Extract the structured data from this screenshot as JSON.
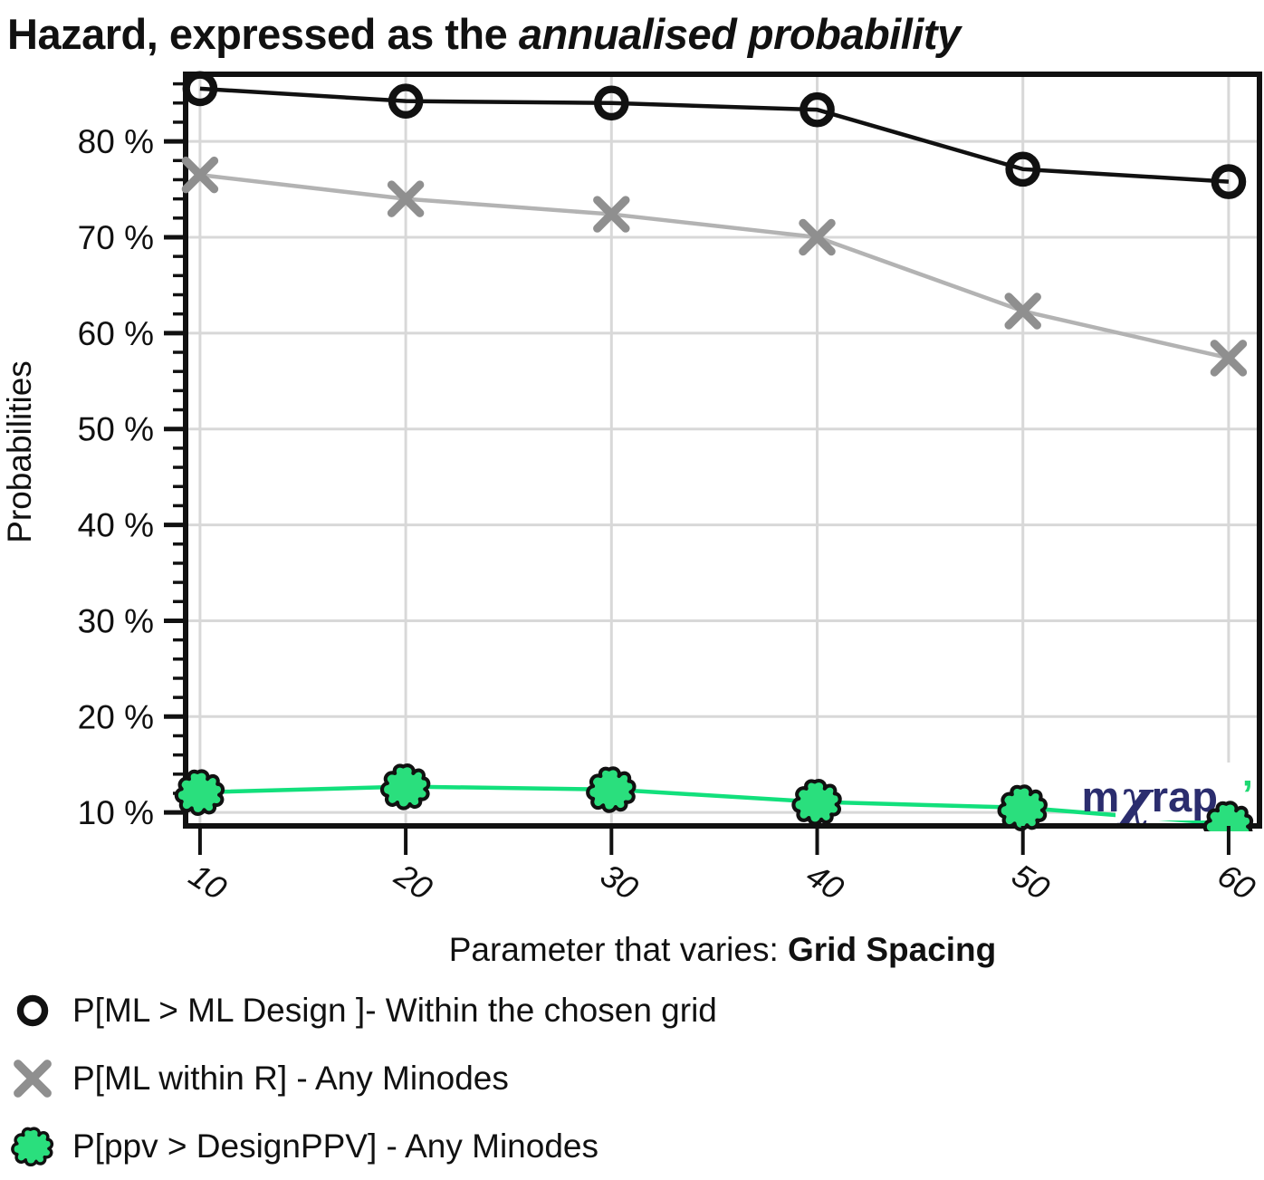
{
  "title": {
    "prefix": "Hazard, expressed as the ",
    "emphasis": "annualised probability"
  },
  "y_axis": {
    "label": "Probabilities",
    "tick_values": [
      10,
      20,
      30,
      40,
      50,
      60,
      70,
      80
    ],
    "tick_labels": [
      "10 %",
      "20 %",
      "30 %",
      "40 %",
      "50 %",
      "60 %",
      "70 %",
      "80 %"
    ],
    "minor_tick_step": 2
  },
  "x_axis": {
    "label_prefix": "Parameter that varies: ",
    "label_bold": "Grid Spacing",
    "tick_labels": [
      "10",
      "20",
      "30",
      "40",
      "50",
      "60"
    ]
  },
  "watermark": {
    "text_m": "m",
    "text_chi": "χ",
    "text_rap": "rap,",
    "accent": "’",
    "color": "#2b2d6e",
    "accent_color": "#1fd872"
  },
  "colors": {
    "grid": "#d8d8d8",
    "axis": "#111111",
    "background": "#ffffff"
  },
  "chart_data": {
    "type": "line",
    "title": "Hazard, expressed as the annualised probability",
    "xlabel": "Parameter that varies: Grid Spacing",
    "ylabel": "Probabilities",
    "units": "percent",
    "x": [
      10,
      20,
      30,
      40,
      50,
      60
    ],
    "xlim": [
      9.3,
      61.5
    ],
    "ylim": [
      8.6,
      87
    ],
    "grid": true,
    "legend_position": "bottom-left",
    "series": [
      {
        "name": "P[ML > ML Design ]- Within the chosen grid",
        "marker": "ring",
        "line_color": "#111111",
        "marker_color": "#111111",
        "values": [
          85.5,
          84.2,
          84.0,
          83.3,
          77.1,
          75.8
        ]
      },
      {
        "name": "P[ML within R] - Any Minodes",
        "marker": "x",
        "line_color": "#b3b3b3",
        "marker_color": "#8f8f8f",
        "values": [
          76.5,
          74.0,
          72.4,
          70.0,
          62.3,
          57.4
        ]
      },
      {
        "name": "P[ppv > DesignPPV] - Any Minodes",
        "marker": "splat",
        "line_color": "#12e07c",
        "marker_color": "#2adf7d",
        "values": [
          12.1,
          12.7,
          12.4,
          11.1,
          10.5,
          8.8
        ]
      }
    ]
  }
}
